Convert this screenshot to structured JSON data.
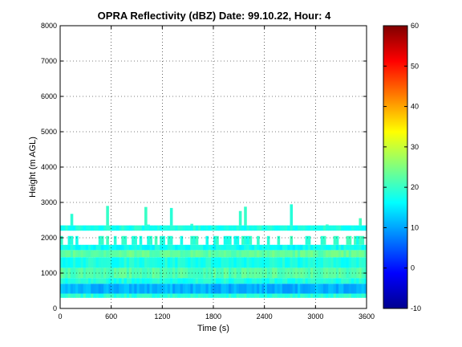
{
  "chart_data": {
    "type": "heatmap",
    "title": "OPRA Reflectivity (dBZ)  Date: 99.10.22, Hour: 4",
    "xlabel": "Time (s)",
    "ylabel": "Height (m AGL)",
    "xlim": [
      0,
      3600
    ],
    "ylim": [
      0,
      8000
    ],
    "x_ticks": [
      "0",
      "600",
      "1200",
      "1800",
      "2400",
      "3000",
      "3600"
    ],
    "y_ticks": [
      "0",
      "1000",
      "2000",
      "3000",
      "4000",
      "5000",
      "6000",
      "7000",
      "8000"
    ],
    "grid": true,
    "colorbar": {
      "range": [
        -10,
        60
      ],
      "ticks": [
        "-10",
        "0",
        "10",
        "20",
        "30",
        "40",
        "50",
        "60"
      ],
      "colormap": "jet"
    },
    "layers": [
      {
        "bottom_m": 300,
        "top_m": 420,
        "dbz": 19
      },
      {
        "bottom_m": 420,
        "top_m": 700,
        "dbz": 11
      },
      {
        "bottom_m": 700,
        "top_m": 860,
        "dbz": 18
      },
      {
        "bottom_m": 860,
        "top_m": 1150,
        "dbz": 22
      },
      {
        "bottom_m": 1150,
        "top_m": 1450,
        "dbz": 18
      },
      {
        "bottom_m": 1450,
        "top_m": 1650,
        "dbz": 23
      },
      {
        "bottom_m": 1650,
        "top_m": 1800,
        "dbz": 17
      },
      {
        "bottom_m": 1800,
        "top_m": 2050,
        "dbz": 19,
        "intermittent": true
      },
      {
        "bottom_m": 2200,
        "top_m": 2350,
        "dbz": 18
      },
      {
        "bottom_m": 2350,
        "top_m": 3000,
        "dbz": 19,
        "sparse": true
      }
    ]
  }
}
